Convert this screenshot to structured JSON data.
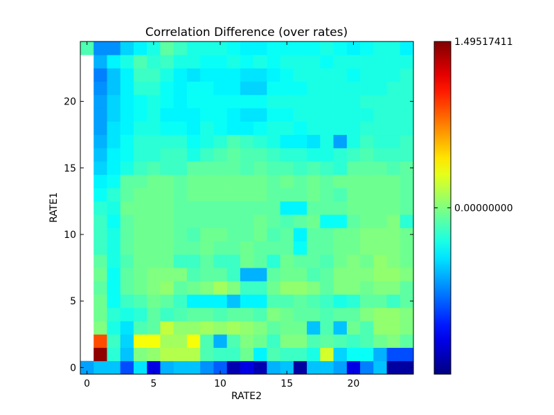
{
  "chart_data": {
    "type": "heatmap",
    "title": "Correlation Difference (over rates)",
    "xlabel": "RATE2",
    "ylabel": "RATE1",
    "xlim": [
      -0.5,
      24.5
    ],
    "ylim": [
      -0.5,
      24.5
    ],
    "x_ticks": [
      0,
      5,
      10,
      15,
      20
    ],
    "y_ticks": [
      0,
      5,
      10,
      15,
      20
    ],
    "colormap": "jet",
    "colorbar": {
      "min": -1.49517411,
      "max": 1.49517411,
      "tick_values": [
        1.49517411,
        0.0
      ],
      "tick_labels": [
        "1.49517411",
        "0.00000000"
      ]
    },
    "grid": false,
    "z_by_row": [
      [
        -0.65,
        -0.55,
        -0.55,
        -0.9,
        -0.45,
        -1.2,
        -0.6,
        -0.55,
        -0.55,
        -0.7,
        -0.85,
        -1.35,
        -1.2,
        -1.35,
        -0.6,
        -0.55,
        -1.4,
        -0.55,
        -0.55,
        -0.65,
        -1.2,
        -0.75,
        -0.55,
        -1.4,
        -1.4
      ],
      [
        null,
        1.45,
        -0.25,
        -0.55,
        0.0,
        0.05,
        0.15,
        0.15,
        0.15,
        -0.15,
        -0.2,
        -0.2,
        -0.05,
        -0.4,
        -0.15,
        -0.2,
        -0.2,
        -0.3,
        0.25,
        -0.5,
        -0.35,
        -0.35,
        -0.6,
        -0.9,
        -0.9
      ],
      [
        null,
        0.9,
        -0.2,
        -0.5,
        0.35,
        0.35,
        0.1,
        0.1,
        0.35,
        -0.15,
        -0.6,
        -0.15,
        0.0,
        -0.05,
        -0.2,
        0.0,
        0.0,
        -0.15,
        -0.1,
        -0.15,
        -0.2,
        -0.15,
        -0.05,
        0.0,
        -0.1
      ],
      [
        null,
        0.0,
        -0.3,
        -0.45,
        -0.15,
        -0.1,
        0.2,
        0.05,
        0.05,
        0.1,
        0.05,
        0.1,
        0.05,
        0.0,
        -0.1,
        -0.05,
        -0.05,
        -0.55,
        -0.15,
        -0.55,
        -0.05,
        -0.15,
        0.05,
        0.05,
        0.0
      ],
      [
        null,
        -0.05,
        -0.25,
        -0.3,
        -0.25,
        -0.1,
        -0.2,
        -0.15,
        -0.1,
        -0.1,
        -0.15,
        -0.1,
        -0.1,
        -0.15,
        0.0,
        -0.05,
        -0.1,
        -0.1,
        -0.15,
        -0.1,
        -0.1,
        0.0,
        0.05,
        0.05,
        0.0
      ],
      [
        null,
        -0.05,
        -0.35,
        -0.2,
        -0.15,
        -0.05,
        -0.1,
        -0.2,
        -0.4,
        -0.4,
        -0.4,
        -0.55,
        -0.4,
        -0.4,
        -0.15,
        -0.15,
        -0.1,
        -0.15,
        -0.2,
        -0.3,
        -0.25,
        -0.1,
        -0.1,
        -0.2,
        -0.1
      ],
      [
        null,
        -0.1,
        -0.35,
        -0.1,
        -0.05,
        0.0,
        0.05,
        -0.1,
        -0.05,
        0.0,
        0.1,
        0.0,
        -0.2,
        -0.2,
        -0.05,
        0.05,
        0.05,
        0.0,
        -0.1,
        0.0,
        0.0,
        -0.05,
        0.0,
        0.0,
        -0.1
      ],
      [
        null,
        -0.05,
        -0.35,
        -0.1,
        -0.05,
        0.0,
        0.0,
        0.0,
        -0.15,
        -0.1,
        -0.1,
        -0.2,
        -0.6,
        -0.6,
        -0.1,
        -0.05,
        -0.05,
        -0.15,
        -0.1,
        0.0,
        0.0,
        0.0,
        0.05,
        0.05,
        0.0
      ],
      [
        null,
        -0.1,
        -0.3,
        -0.15,
        -0.05,
        -0.05,
        -0.05,
        -0.2,
        -0.2,
        -0.1,
        -0.2,
        -0.2,
        -0.05,
        -0.1,
        -0.25,
        -0.05,
        -0.1,
        -0.1,
        -0.15,
        -0.05,
        0.0,
        -0.05,
        0.05,
        0.0,
        -0.05
      ],
      [
        null,
        -0.2,
        -0.3,
        -0.1,
        -0.05,
        -0.05,
        -0.05,
        -0.1,
        -0.1,
        -0.05,
        -0.1,
        -0.1,
        -0.05,
        -0.1,
        -0.1,
        -0.1,
        -0.35,
        -0.1,
        -0.1,
        -0.05,
        -0.05,
        0.0,
        0.0,
        0.0,
        -0.05
      ],
      [
        null,
        -0.2,
        -0.3,
        -0.1,
        -0.05,
        -0.05,
        -0.05,
        -0.1,
        -0.15,
        -0.05,
        -0.05,
        -0.1,
        -0.1,
        -0.05,
        -0.15,
        -0.1,
        -0.4,
        -0.1,
        -0.1,
        -0.05,
        -0.05,
        0.0,
        0.0,
        0.0,
        -0.05
      ],
      [
        null,
        -0.2,
        -0.35,
        -0.1,
        -0.05,
        -0.05,
        -0.05,
        -0.1,
        -0.1,
        -0.1,
        -0.1,
        -0.1,
        -0.1,
        -0.05,
        -0.1,
        -0.15,
        -0.1,
        -0.05,
        -0.35,
        -0.35,
        -0.1,
        -0.05,
        -0.05,
        0.0,
        -0.25
      ],
      [
        null,
        -0.25,
        -0.3,
        -0.05,
        -0.05,
        -0.05,
        -0.05,
        -0.1,
        -0.1,
        -0.1,
        -0.1,
        -0.1,
        -0.1,
        -0.1,
        -0.1,
        -0.4,
        -0.4,
        -0.1,
        -0.1,
        -0.1,
        -0.05,
        -0.05,
        -0.05,
        -0.05,
        -0.1
      ],
      [
        null,
        -0.35,
        -0.25,
        -0.1,
        -0.05,
        -0.05,
        -0.05,
        -0.1,
        -0.05,
        -0.05,
        -0.05,
        -0.05,
        -0.05,
        -0.05,
        -0.1,
        -0.1,
        -0.1,
        -0.05,
        -0.1,
        -0.15,
        -0.05,
        -0.05,
        -0.05,
        -0.05,
        -0.1
      ],
      [
        null,
        -0.4,
        -0.35,
        -0.1,
        -0.1,
        -0.05,
        -0.05,
        -0.1,
        -0.05,
        -0.05,
        -0.05,
        -0.05,
        -0.05,
        -0.05,
        -0.1,
        -0.05,
        -0.1,
        -0.05,
        -0.1,
        -0.05,
        -0.05,
        -0.05,
        -0.05,
        -0.05,
        -0.1
      ],
      [
        null,
        -0.5,
        -0.4,
        -0.3,
        -0.2,
        -0.15,
        -0.2,
        -0.2,
        -0.1,
        -0.1,
        -0.1,
        -0.1,
        -0.15,
        -0.1,
        -0.15,
        -0.15,
        -0.2,
        -0.15,
        -0.2,
        -0.25,
        -0.1,
        -0.1,
        -0.1,
        -0.15,
        -0.1
      ],
      [
        null,
        -0.55,
        -0.4,
        -0.35,
        -0.25,
        -0.25,
        -0.2,
        -0.2,
        -0.3,
        -0.2,
        -0.15,
        -0.1,
        -0.15,
        -0.15,
        -0.2,
        -0.25,
        -0.25,
        -0.3,
        -0.3,
        -0.25,
        -0.2,
        -0.15,
        -0.2,
        -0.2,
        -0.2
      ],
      [
        null,
        -0.6,
        -0.45,
        -0.35,
        -0.25,
        -0.25,
        -0.25,
        -0.25,
        -0.35,
        -0.3,
        -0.25,
        -0.15,
        -0.2,
        -0.25,
        -0.3,
        -0.4,
        -0.4,
        -0.45,
        -0.3,
        -0.65,
        -0.3,
        -0.2,
        -0.25,
        -0.25,
        -0.2
      ],
      [
        null,
        -0.65,
        -0.45,
        -0.4,
        -0.3,
        -0.3,
        -0.35,
        -0.35,
        -0.4,
        -0.3,
        -0.35,
        -0.4,
        -0.4,
        -0.35,
        -0.3,
        -0.3,
        -0.35,
        -0.3,
        -0.3,
        -0.3,
        -0.3,
        -0.25,
        -0.25,
        -0.25,
        -0.25
      ],
      [
        null,
        -0.65,
        -0.5,
        -0.4,
        -0.35,
        -0.3,
        -0.4,
        -0.4,
        -0.4,
        -0.35,
        -0.35,
        -0.4,
        -0.45,
        -0.45,
        -0.35,
        -0.35,
        -0.3,
        -0.3,
        -0.3,
        -0.3,
        -0.3,
        -0.3,
        -0.25,
        -0.25,
        -0.25
      ],
      [
        null,
        -0.65,
        -0.5,
        -0.4,
        -0.35,
        -0.3,
        -0.35,
        -0.4,
        -0.35,
        -0.35,
        -0.35,
        -0.35,
        -0.35,
        -0.35,
        -0.3,
        -0.3,
        -0.3,
        -0.3,
        -0.3,
        -0.3,
        -0.3,
        -0.25,
        -0.25,
        -0.25,
        -0.25
      ],
      [
        null,
        -0.7,
        -0.55,
        -0.4,
        -0.25,
        -0.25,
        -0.35,
        -0.4,
        -0.35,
        -0.35,
        -0.4,
        -0.4,
        -0.5,
        -0.5,
        -0.35,
        -0.35,
        -0.35,
        -0.3,
        -0.3,
        -0.3,
        -0.3,
        -0.3,
        -0.3,
        -0.25,
        -0.25
      ],
      [
        null,
        -0.75,
        -0.55,
        -0.4,
        -0.2,
        -0.2,
        -0.3,
        -0.4,
        -0.45,
        -0.4,
        -0.4,
        -0.4,
        -0.45,
        -0.45,
        -0.4,
        -0.35,
        -0.3,
        -0.3,
        -0.3,
        -0.3,
        -0.35,
        -0.3,
        -0.3,
        -0.3,
        -0.25
      ],
      [
        null,
        -0.6,
        -0.4,
        -0.3,
        -0.15,
        -0.25,
        -0.2,
        -0.3,
        -0.3,
        -0.35,
        -0.35,
        -0.3,
        -0.35,
        -0.3,
        -0.35,
        -0.3,
        -0.3,
        -0.3,
        -0.35,
        -0.3,
        -0.3,
        -0.3,
        -0.3,
        -0.3,
        -0.3
      ],
      [
        -0.15,
        -0.7,
        -0.7,
        -0.5,
        -0.4,
        -0.3,
        -0.1,
        -0.2,
        -0.3,
        -0.3,
        -0.3,
        -0.35,
        -0.4,
        -0.4,
        -0.35,
        -0.35,
        -0.35,
        -0.35,
        -0.3,
        -0.35,
        -0.4,
        -0.35,
        -0.3,
        -0.3,
        -0.4
      ]
    ]
  }
}
